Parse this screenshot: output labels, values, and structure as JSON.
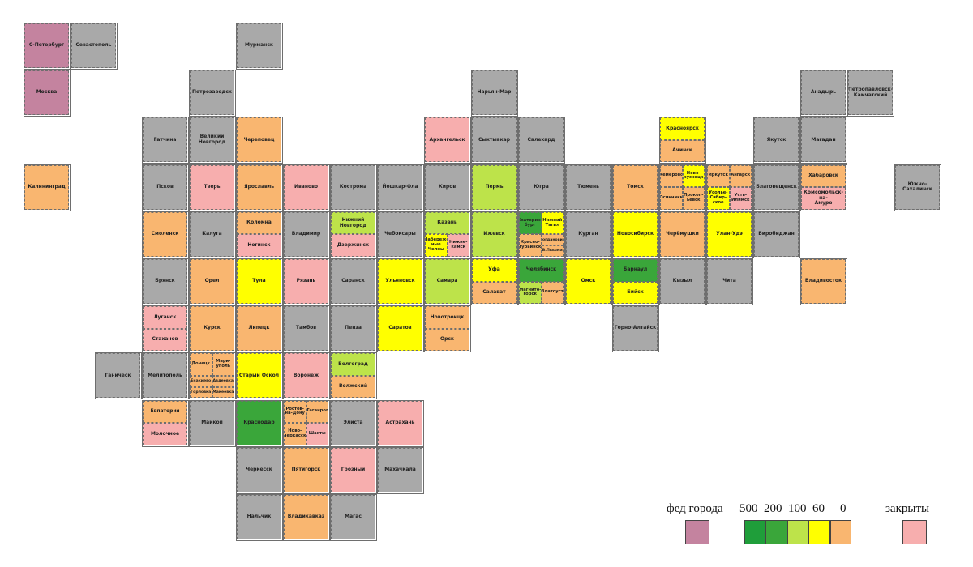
{
  "tiles": [
    {
      "parts": [
        {
          "label": "С-Петербург",
          "color": "#c4839f"
        }
      ]
    },
    {
      "parts": [
        {
          "label": "Севастополь",
          "color": "#a9a9a9"
        }
      ]
    },
    {
      "parts": [
        {
          "label": "Мурманск",
          "color": "#a9a9a9"
        }
      ]
    },
    {
      "parts": [
        {
          "label": "Москва",
          "color": "#c4839f"
        }
      ]
    },
    {
      "parts": [
        {
          "label": "Петрозаводск",
          "color": "#a9a9a9"
        }
      ]
    },
    {
      "parts": [
        {
          "label": "Нарьян-Мар",
          "color": "#a9a9a9"
        }
      ]
    },
    {
      "parts": [
        {
          "label": "Анадырь",
          "color": "#a9a9a9"
        }
      ]
    },
    {
      "parts": [
        {
          "label": "Петропавловск-\nКамчатский",
          "color": "#a9a9a9"
        }
      ]
    },
    {
      "parts": [
        {
          "label": "Гатчина",
          "color": "#a9a9a9"
        }
      ]
    },
    {
      "parts": [
        {
          "label": "Великий Новгород",
          "color": "#a9a9a9"
        }
      ]
    },
    {
      "parts": [
        {
          "label": "Череповец",
          "color": "#f9b670"
        }
      ]
    },
    {
      "parts": [
        {
          "label": "Архангельск",
          "color": "#f7aeae"
        }
      ]
    },
    {
      "parts": [
        {
          "label": "Сыктывкар",
          "color": "#a9a9a9"
        }
      ]
    },
    {
      "parts": [
        {
          "label": "Салехард",
          "color": "#a9a9a9"
        }
      ]
    },
    {
      "parts": [
        {
          "label": "Красноярск",
          "color": "#ffff00"
        },
        {
          "label": "Ачинск",
          "color": "#f9b670"
        }
      ]
    },
    {
      "parts": [
        {
          "label": "Якутск",
          "color": "#a9a9a9"
        }
      ]
    },
    {
      "parts": [
        {
          "label": "Магадан",
          "color": "#a9a9a9"
        }
      ]
    },
    {
      "parts": [
        {
          "label": "Калининград",
          "color": "#f9b670"
        }
      ]
    },
    {
      "parts": [
        {
          "label": "Псков",
          "color": "#a9a9a9"
        }
      ]
    },
    {
      "parts": [
        {
          "label": "Тверь",
          "color": "#f7aeae"
        }
      ]
    },
    {
      "parts": [
        {
          "label": "Ярославль",
          "color": "#f9b670"
        }
      ]
    },
    {
      "parts": [
        {
          "label": "Иваново",
          "color": "#f7aeae"
        }
      ]
    },
    {
      "parts": [
        {
          "label": "Кострома",
          "color": "#a9a9a9"
        }
      ]
    },
    {
      "parts": [
        {
          "label": "Йошкар-Ола",
          "color": "#a9a9a9"
        }
      ]
    },
    {
      "parts": [
        {
          "label": "Киров",
          "color": "#a9a9a9"
        }
      ]
    },
    {
      "parts": [
        {
          "label": "Пермь",
          "color": "#bde34a"
        }
      ]
    },
    {
      "parts": [
        {
          "label": "Югра",
          "color": "#a9a9a9"
        }
      ]
    },
    {
      "parts": [
        {
          "label": "Тюмень",
          "color": "#a9a9a9"
        }
      ]
    },
    {
      "parts": [
        {
          "label": "Томск",
          "color": "#f9b670"
        }
      ]
    },
    {
      "parts": [
        {
          "label": "Кемерово",
          "color": "#f9b670"
        },
        {
          "label": "Ново-\nкузнецк",
          "color": "#ffff00"
        },
        {
          "label": "Осинники",
          "color": "#f9b670"
        },
        {
          "label": "Прокоп-\nьевск",
          "color": "#f9b670"
        }
      ]
    },
    {
      "parts": [
        {
          "label": "Иркутск",
          "color": "#f9b670"
        },
        {
          "label": "Ангарск",
          "color": "#f9b670"
        },
        {
          "label": "Усолье-\nСибир-\nское",
          "color": "#ffff00"
        },
        {
          "label": "Усть-\nИлимск",
          "color": "#f7aeae"
        }
      ]
    },
    {
      "parts": [
        {
          "label": "Благовещенск",
          "color": "#a9a9a9"
        }
      ]
    },
    {
      "parts": [
        {
          "label": "Хабаровск",
          "color": "#f9b670"
        },
        {
          "label": "Комсомольск-на-\nАмуре",
          "color": "#f7aeae"
        }
      ]
    },
    {
      "parts": [
        {
          "label": "Южно-Сахалинск",
          "color": "#a9a9a9"
        }
      ]
    },
    {
      "parts": [
        {
          "label": "Смоленск",
          "color": "#f9b670"
        }
      ]
    },
    {
      "parts": [
        {
          "label": "Калуга",
          "color": "#a9a9a9"
        }
      ]
    },
    {
      "parts": [
        {
          "label": "Коломна",
          "color": "#f9b670"
        },
        {
          "label": "Ногинск",
          "color": "#f7aeae"
        }
      ]
    },
    {
      "parts": [
        {
          "label": "Владимир",
          "color": "#a9a9a9"
        }
      ]
    },
    {
      "parts": [
        {
          "label": "Нижний Новгород",
          "color": "#bde34a"
        },
        {
          "label": "Дзержинск",
          "color": "#f7aeae"
        }
      ]
    },
    {
      "parts": [
        {
          "label": "Чебоксары",
          "color": "#a9a9a9"
        }
      ]
    },
    {
      "parts": [
        {
          "label": "Казань",
          "color": "#bde34a"
        },
        {
          "label": "Набереж-\nные\nЧелны",
          "color": "#ffff00"
        },
        {
          "label": "Нижне-\nкамск",
          "color": "#f7aeae"
        }
      ]
    },
    {
      "parts": [
        {
          "label": "Ижевск",
          "color": "#bde34a"
        }
      ]
    },
    {
      "parts": [
        {
          "label": "Екатерин-\nбург",
          "color": "#3aa63a"
        },
        {
          "label": "Нижний\nТагил",
          "color": "#ffff00"
        },
        {
          "label": "Красно-\nтурьинск",
          "color": "#f9b670"
        },
        {
          "label": "Богданович",
          "color": "#f9b670"
        },
        {
          "label": "В.Пышма",
          "color": "#f9b670"
        }
      ]
    },
    {
      "parts": [
        {
          "label": "Курган",
          "color": "#a9a9a9"
        }
      ]
    },
    {
      "parts": [
        {
          "label": "Новосибирск",
          "color": "#ffff00"
        }
      ]
    },
    {
      "parts": [
        {
          "label": "Черёмушки",
          "color": "#f9b670"
        }
      ]
    },
    {
      "parts": [
        {
          "label": "Улан-Удэ",
          "color": "#ffff00"
        }
      ]
    },
    {
      "parts": [
        {
          "label": "Биробиджан",
          "color": "#a9a9a9"
        }
      ]
    },
    {
      "parts": [
        {
          "label": "Брянск",
          "color": "#a9a9a9"
        }
      ]
    },
    {
      "parts": [
        {
          "label": "Орел",
          "color": "#f9b670"
        }
      ]
    },
    {
      "parts": [
        {
          "label": "Тула",
          "color": "#ffff00"
        }
      ]
    },
    {
      "parts": [
        {
          "label": "Рязань",
          "color": "#f7aeae"
        }
      ]
    },
    {
      "parts": [
        {
          "label": "Саранск",
          "color": "#a9a9a9"
        }
      ]
    },
    {
      "parts": [
        {
          "label": "Ульяновск",
          "color": "#ffff00"
        }
      ]
    },
    {
      "parts": [
        {
          "label": "Самара",
          "color": "#bde34a"
        }
      ]
    },
    {
      "parts": [
        {
          "label": "Уфа",
          "color": "#ffff00"
        },
        {
          "label": "Салават",
          "color": "#f9b670"
        }
      ]
    },
    {
      "parts": [
        {
          "label": "Челябинск",
          "color": "#3aa63a"
        },
        {
          "label": "Магнито-\nгорск",
          "color": "#bde34a"
        },
        {
          "label": "Златоуст",
          "color": "#f9b670"
        }
      ]
    },
    {
      "parts": [
        {
          "label": "Омск",
          "color": "#ffff00"
        }
      ]
    },
    {
      "parts": [
        {
          "label": "Барнаул",
          "color": "#3aa63a"
        },
        {
          "label": "Бийск",
          "color": "#ffff00"
        }
      ]
    },
    {
      "parts": [
        {
          "label": "Кызыл",
          "color": "#a9a9a9"
        }
      ]
    },
    {
      "parts": [
        {
          "label": "Чита",
          "color": "#a9a9a9"
        }
      ]
    },
    {
      "parts": [
        {
          "label": "Владивосток",
          "color": "#f9b670"
        }
      ]
    },
    {
      "parts": [
        {
          "label": "Луганск",
          "color": "#f7aeae"
        },
        {
          "label": "Стаханов",
          "color": "#f7aeae"
        }
      ]
    },
    {
      "parts": [
        {
          "label": "Курск",
          "color": "#f9b670"
        }
      ]
    },
    {
      "parts": [
        {
          "label": "Липецк",
          "color": "#f9b670"
        }
      ]
    },
    {
      "parts": [
        {
          "label": "Тамбов",
          "color": "#a9a9a9"
        }
      ]
    },
    {
      "parts": [
        {
          "label": "Пенза",
          "color": "#a9a9a9"
        }
      ]
    },
    {
      "parts": [
        {
          "label": "Саратов",
          "color": "#ffff00"
        }
      ]
    },
    {
      "parts": [
        {
          "label": "Новотроицк",
          "color": "#f9b670"
        },
        {
          "label": "Орск",
          "color": "#f9b670"
        }
      ]
    },
    {
      "parts": [
        {
          "label": "Горно-Алтайск",
          "color": "#a9a9a9"
        }
      ]
    },
    {
      "parts": [
        {
          "label": "Ганическ",
          "color": "#a9a9a9"
        }
      ]
    },
    {
      "parts": [
        {
          "label": "Мелитополь",
          "color": "#a9a9a9"
        }
      ]
    },
    {
      "parts": [
        {
          "label": "Донецк",
          "color": "#f9b670"
        },
        {
          "label": "Мари-\nуполь",
          "color": "#f9b670"
        },
        {
          "label": "Енакиево",
          "color": "#f9b670"
        },
        {
          "label": "Авдеевка",
          "color": "#f9b670"
        },
        {
          "label": "Горловка",
          "color": "#f9b670"
        },
        {
          "label": "Макеевка",
          "color": "#f9b670"
        }
      ]
    },
    {
      "parts": [
        {
          "label": "Старый Оскол",
          "color": "#ffff00"
        }
      ]
    },
    {
      "parts": [
        {
          "label": "Воронеж",
          "color": "#f7aeae"
        }
      ]
    },
    {
      "parts": [
        {
          "label": "Волгоград",
          "color": "#bde34a"
        },
        {
          "label": "Волжский",
          "color": "#f9b670"
        }
      ]
    },
    {
      "parts": [
        {
          "label": "Евпатория",
          "color": "#f9b670"
        },
        {
          "label": "Молочное",
          "color": "#f7aeae"
        }
      ]
    },
    {
      "parts": [
        {
          "label": "Майкоп",
          "color": "#a9a9a9"
        }
      ]
    },
    {
      "parts": [
        {
          "label": "Краснодар",
          "color": "#3aa63a"
        }
      ]
    },
    {
      "parts": [
        {
          "label": "Ростов-\nна-Дону",
          "color": "#f9b670"
        },
        {
          "label": "Таганрог",
          "color": "#f9b670"
        },
        {
          "label": "Ново-\nчеркасск",
          "color": "#f9b670"
        },
        {
          "label": "Шахты",
          "color": "#f7aeae"
        }
      ]
    },
    {
      "parts": [
        {
          "label": "Элиста",
          "color": "#a9a9a9"
        }
      ]
    },
    {
      "parts": [
        {
          "label": "Астрахань",
          "color": "#f7aeae"
        }
      ]
    },
    {
      "parts": [
        {
          "label": "Черкесск",
          "color": "#a9a9a9"
        }
      ]
    },
    {
      "parts": [
        {
          "label": "Пятигорск",
          "color": "#f9b670"
        }
      ]
    },
    {
      "parts": [
        {
          "label": "Грозный",
          "color": "#f7aeae"
        }
      ]
    },
    {
      "parts": [
        {
          "label": "Махачкала",
          "color": "#a9a9a9"
        }
      ]
    },
    {
      "parts": [
        {
          "label": "Нальчик",
          "color": "#a9a9a9"
        }
      ]
    },
    {
      "parts": [
        {
          "label": "Владикавказ",
          "color": "#f9b670"
        }
      ]
    },
    {
      "parts": [
        {
          "label": "Магас",
          "color": "#a9a9a9"
        }
      ]
    }
  ],
  "legend": {
    "federal": {
      "label": "фед города",
      "color": "#c4839f"
    },
    "scale": {
      "ticks": [
        500,
        200,
        100,
        60,
        0
      ],
      "colors": [
        "#1f9e3a",
        "#3aa63a",
        "#bde34a",
        "#ffff00",
        "#f9b670"
      ]
    },
    "closed": {
      "label": "закрыты",
      "color": "#f7aeae"
    }
  }
}
